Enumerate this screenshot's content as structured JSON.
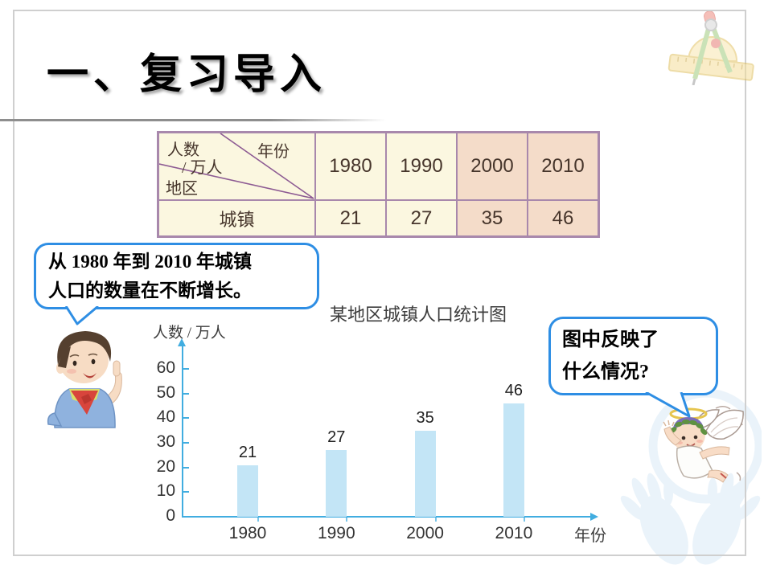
{
  "slide": {
    "title": "一、复习导入"
  },
  "table": {
    "corner": {
      "unit_line1": "人数",
      "unit_line2": "/ 万人",
      "top_right": "年份",
      "bottom_left": "地区"
    },
    "columns": [
      "1980",
      "1990",
      "2000",
      "2010"
    ],
    "rows": [
      {
        "label": "城镇",
        "values": [
          "21",
          "27",
          "35",
          "46"
        ]
      }
    ]
  },
  "bubbles": {
    "left": {
      "line1": "从 1980 年到 2010 年城镇",
      "line2": "人口的数量在不断增长。"
    },
    "right": {
      "line1": "图中反映了",
      "line2": "什么情况?"
    }
  },
  "chart_data": {
    "type": "bar",
    "title": "某地区城镇人口统计图",
    "ylabel": "人数 / 万人",
    "xlabel": "年份",
    "categories": [
      "1980",
      "1990",
      "2000",
      "2010"
    ],
    "values": [
      21,
      27,
      35,
      46
    ],
    "ylim": [
      0,
      60
    ],
    "ytick_step": 10,
    "grid": false,
    "legend": false,
    "data_labels": true
  },
  "icons": {
    "boy": "boy-student-pointing",
    "angel": "angel-cherub",
    "decoration": "compass-protractor-ruler",
    "watermark": "hands-circle-watermark"
  },
  "colors": {
    "accent_blue": "#2E8EE4",
    "axis_blue": "#41ADE0",
    "bar_fill": "#C3E5F6",
    "table_cream": "#FBF7E0",
    "table_peach": "#F4DCC9",
    "table_border": "#A888AC",
    "diagonal_purple": "#8D5B93",
    "frame_gray": "#CFCFCF"
  }
}
